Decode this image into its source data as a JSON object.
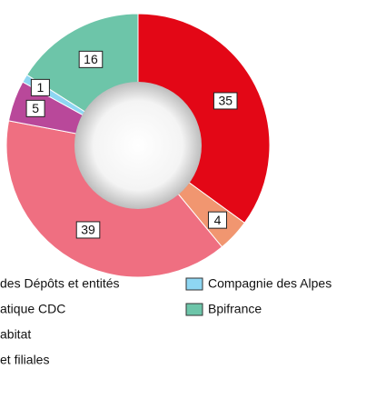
{
  "chart_data": {
    "type": "donut",
    "series": [
      {
        "name": "des Dépôts et entités",
        "color": "#e30716",
        "values": [
          35
        ]
      },
      {
        "name": "atique CDC",
        "color": "#f19670",
        "values": [
          4
        ]
      },
      {
        "name": "abitat",
        "color": "#ef6f81",
        "values": [
          39
        ]
      },
      {
        "name": "et filiales",
        "color": "#b9489a",
        "values": [
          5
        ]
      },
      {
        "name": "Compagnie des Alpes",
        "color": "#8ed6f2",
        "values": [
          1
        ]
      },
      {
        "name": "Bpifrance",
        "color": "#6dc5a9",
        "values": [
          16
        ]
      }
    ]
  }
}
